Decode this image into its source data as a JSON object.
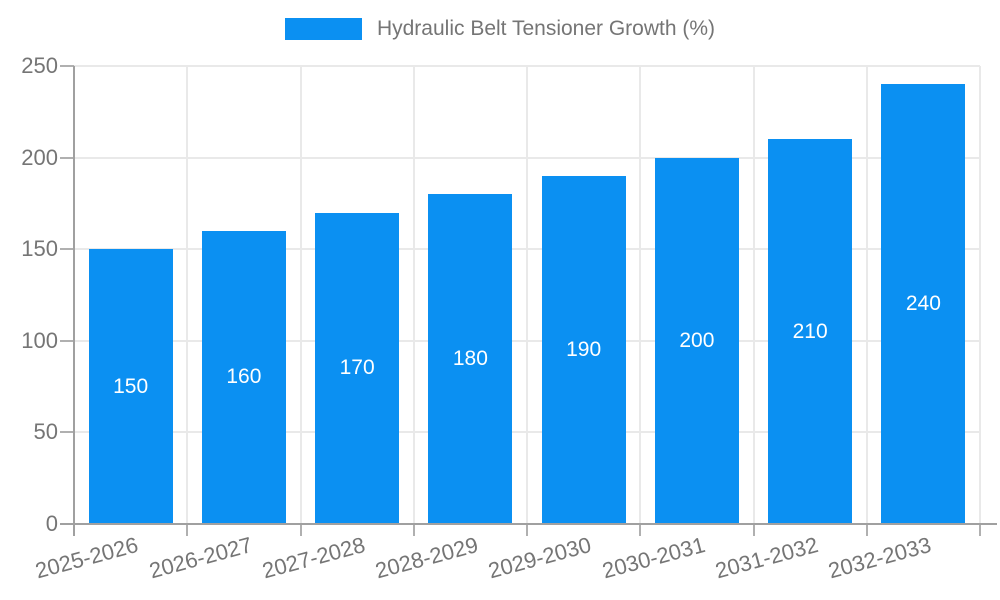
{
  "legend": {
    "label": "Hydraulic Belt Tensioner Growth (%)"
  },
  "chart_data": {
    "type": "bar",
    "title": "Hydraulic Belt Tensioner Growth (%)",
    "categories": [
      "2025-2026",
      "2026-2027",
      "2027-2028",
      "2028-2029",
      "2029-2030",
      "2030-2031",
      "2031-2032",
      "2032-2033"
    ],
    "values": [
      150,
      160,
      170,
      180,
      190,
      200,
      210,
      240
    ],
    "xlabel": "",
    "ylabel": "",
    "ylim": [
      0,
      250
    ],
    "yticks": [
      0,
      50,
      100,
      150,
      200,
      250
    ],
    "grid": true,
    "legend_position": "top-center",
    "bar_labels_inside": true
  },
  "colors": {
    "bar": "#0b90f2",
    "bar_label": "#ffffff",
    "axis_text": "#757575",
    "gridline": "#e9e9e9",
    "axis_line": "#a0a0a0",
    "background": "#ffffff"
  }
}
